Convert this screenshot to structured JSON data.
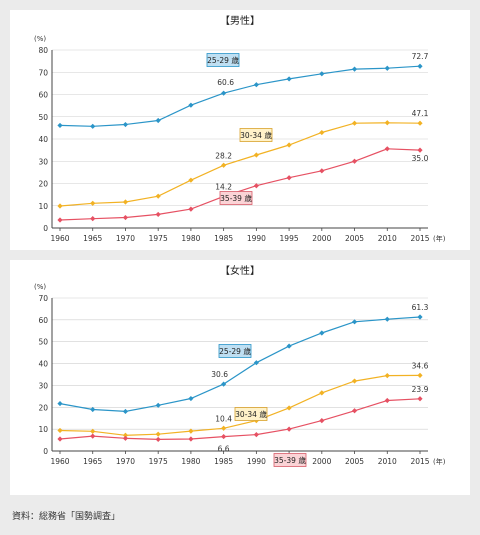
{
  "chart_data": [
    {
      "type": "line",
      "title": "【男性】",
      "ylabel": "(%)",
      "xunit": "(年)",
      "ylim": [
        0,
        80
      ],
      "yticks": [
        0,
        10,
        20,
        30,
        40,
        50,
        60,
        70,
        80
      ],
      "x": [
        "1960",
        "1965",
        "1970",
        "1975",
        "1980",
        "1985",
        "1990",
        "1995",
        "2000",
        "2005",
        "2010",
        "2015"
      ],
      "series": [
        {
          "name": "25-29 歳",
          "color": "#2b95c8",
          "tagFill": "#bfdff2",
          "tagStroke": "#2b95c8",
          "values": [
            46.1,
            45.7,
            46.5,
            48.3,
            55.2,
            60.6,
            64.4,
            67.0,
            69.3,
            71.4,
            71.8,
            72.7
          ]
        },
        {
          "name": "30-34 歳",
          "color": "#f2b224",
          "tagFill": "#fff2c9",
          "tagStroke": "#d9a22c",
          "values": [
            9.9,
            11.1,
            11.7,
            14.3,
            21.5,
            28.2,
            32.8,
            37.3,
            42.9,
            47.1,
            47.3,
            47.1
          ]
        },
        {
          "name": "35-39 歳",
          "color": "#e65163",
          "tagFill": "#fbd3d6",
          "tagStroke": "#d85d6a",
          "values": [
            3.6,
            4.2,
            4.7,
            6.1,
            8.5,
            14.2,
            19.0,
            22.6,
            25.7,
            30.0,
            35.6,
            35.0
          ]
        }
      ],
      "annotations": [
        "72.7",
        "60.6",
        "47.1",
        "28.2",
        "35.0",
        "14.2"
      ]
    },
    {
      "type": "line",
      "title": "【女性】",
      "ylabel": "(%)",
      "xunit": "(年)",
      "ylim": [
        0,
        70
      ],
      "yticks": [
        0,
        10,
        20,
        30,
        40,
        50,
        60,
        70
      ],
      "x": [
        "1960",
        "1965",
        "1970",
        "1975",
        "1980",
        "1985",
        "1990",
        "1995",
        "2000",
        "2005",
        "2010",
        "2015"
      ],
      "series": [
        {
          "name": "25-29 歳",
          "color": "#2b95c8",
          "tagFill": "#bfdff2",
          "tagStroke": "#2b95c8",
          "values": [
            21.7,
            19.0,
            18.1,
            20.9,
            24.0,
            30.6,
            40.4,
            48.0,
            54.0,
            59.1,
            60.3,
            61.3
          ]
        },
        {
          "name": "30-34 歳",
          "color": "#f2b224",
          "tagFill": "#fff2c9",
          "tagStroke": "#d9a22c",
          "values": [
            9.4,
            9.0,
            7.2,
            7.7,
            9.1,
            10.4,
            13.9,
            19.7,
            26.6,
            32.0,
            34.5,
            34.6
          ]
        },
        {
          "name": "35-39 歳",
          "color": "#e65163",
          "tagFill": "#fbd3d6",
          "tagStroke": "#d85d6a",
          "values": [
            5.5,
            6.8,
            5.8,
            5.3,
            5.5,
            6.6,
            7.5,
            10.0,
            13.9,
            18.4,
            23.1,
            23.9
          ]
        }
      ],
      "annotations": [
        "61.3",
        "30.6",
        "34.6",
        "10.4",
        "23.9",
        "6.6"
      ]
    }
  ],
  "source": "資料：総務省「国勢調査」"
}
